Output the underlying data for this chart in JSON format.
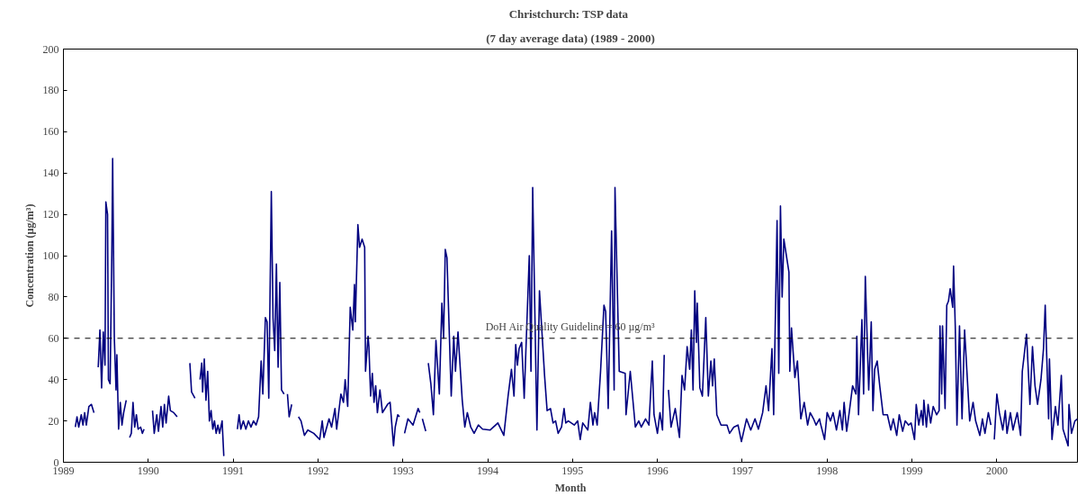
{
  "chart_data": {
    "type": "line",
    "title": "Christchurch:  TSP data",
    "subtitle": "(7 day average data) (1989 - 2000)",
    "xlabel": "Month",
    "ylabel": "Concentration (µg/m³)",
    "xlim": [
      1989,
      2000.95
    ],
    "xticks": [
      1989,
      1990,
      1991,
      1992,
      1993,
      1994,
      1995,
      1996,
      1997,
      1998,
      1999,
      2000
    ],
    "ylim": [
      0,
      200
    ],
    "yticks": [
      0,
      20,
      40,
      60,
      80,
      100,
      120,
      140,
      160,
      180,
      200
    ],
    "grid": false,
    "marker": "none",
    "line_style": "solid",
    "ref_lines": [
      {
        "axis": "y",
        "value": 60,
        "label": "DoH Air Quality Guideline = 60 µg/m³",
        "color": "#000000",
        "line_style": "dashed"
      }
    ],
    "series": [
      {
        "color": "#000080",
        "x": [
          1989.14,
          1989.16,
          1989.18,
          1989.21,
          1989.23,
          1989.25,
          1989.27,
          1989.3,
          1989.33,
          1989.36,
          1989.38,
          1989.41,
          1989.43,
          1989.45,
          1989.47,
          1989.49,
          1989.5,
          1989.52,
          1989.53,
          1989.55,
          1989.57,
          1989.58,
          1989.6,
          1989.62,
          1989.63,
          1989.65,
          1989.67,
          1989.69,
          1989.71,
          1989.74,
          1989.76,
          1989.78,
          1989.8,
          1989.82,
          1989.84,
          1989.86,
          1989.88,
          1989.91,
          1989.93,
          1989.95,
          1990.0,
          1990.05,
          1990.07,
          1990.1,
          1990.12,
          1990.15,
          1990.17,
          1990.19,
          1990.21,
          1990.24,
          1990.26,
          1990.3,
          1990.34,
          1990.42,
          1990.49,
          1990.51,
          1990.55,
          1990.58,
          1990.61,
          1990.63,
          1990.64,
          1990.66,
          1990.68,
          1990.7,
          1990.72,
          1990.74,
          1990.76,
          1990.78,
          1990.8,
          1990.82,
          1990.84,
          1990.87,
          1990.89,
          1990.97,
          1991.05,
          1991.07,
          1991.09,
          1991.12,
          1991.15,
          1991.18,
          1991.21,
          1991.24,
          1991.27,
          1991.3,
          1991.33,
          1991.35,
          1991.38,
          1991.4,
          1991.42,
          1991.45,
          1991.47,
          1991.49,
          1991.51,
          1991.53,
          1991.55,
          1991.57,
          1991.6,
          1991.62,
          1991.64,
          1991.66,
          1991.69,
          1991.73,
          1991.77,
          1991.8,
          1991.84,
          1991.88,
          1991.95,
          1992.02,
          1992.05,
          1992.07,
          1992.13,
          1992.16,
          1992.2,
          1992.22,
          1992.27,
          1992.3,
          1992.32,
          1992.35,
          1992.38,
          1992.41,
          1992.43,
          1992.44,
          1992.47,
          1992.49,
          1992.52,
          1992.55,
          1992.56,
          1992.59,
          1992.6,
          1992.62,
          1992.64,
          1992.66,
          1992.68,
          1992.7,
          1992.73,
          1992.76,
          1992.82,
          1992.85,
          1992.89,
          1992.91,
          1992.94,
          1992.96,
          1992.99,
          1993.02,
          1993.06,
          1993.12,
          1993.18,
          1993.2,
          1993.22,
          1993.23,
          1993.27,
          1993.29,
          1993.3,
          1993.33,
          1993.36,
          1993.39,
          1993.43,
          1993.46,
          1993.48,
          1993.5,
          1993.52,
          1993.57,
          1993.6,
          1993.62,
          1993.65,
          1993.7,
          1993.73,
          1993.76,
          1993.8,
          1993.84,
          1993.89,
          1993.94,
          1994.03,
          1994.12,
          1994.19,
          1994.24,
          1994.28,
          1994.31,
          1994.33,
          1994.35,
          1994.37,
          1994.4,
          1994.43,
          1994.49,
          1994.51,
          1994.53,
          1994.58,
          1994.61,
          1994.67,
          1994.7,
          1994.74,
          1994.77,
          1994.8,
          1994.83,
          1994.87,
          1994.9,
          1994.92,
          1994.95,
          1995.02,
          1995.06,
          1995.09,
          1995.12,
          1995.18,
          1995.21,
          1995.24,
          1995.26,
          1995.29,
          1995.33,
          1995.37,
          1995.39,
          1995.42,
          1995.46,
          1995.49,
          1995.5,
          1995.55,
          1995.62,
          1995.63,
          1995.68,
          1995.74,
          1995.78,
          1995.81,
          1995.86,
          1995.9,
          1995.94,
          1995.96,
          1996.0,
          1996.03,
          1996.06,
          1996.08,
          1996.1,
          1996.13,
          1996.16,
          1996.21,
          1996.26,
          1996.29,
          1996.32,
          1996.35,
          1996.38,
          1996.4,
          1996.42,
          1996.44,
          1996.46,
          1996.47,
          1996.5,
          1996.53,
          1996.57,
          1996.6,
          1996.63,
          1996.65,
          1996.67,
          1996.7,
          1996.75,
          1996.82,
          1996.85,
          1996.9,
          1996.95,
          1996.99,
          1997.05,
          1997.1,
          1997.15,
          1997.19,
          1997.24,
          1997.28,
          1997.31,
          1997.35,
          1997.37,
          1997.41,
          1997.43,
          1997.45,
          1997.47,
          1997.49,
          1997.55,
          1997.56,
          1997.58,
          1997.62,
          1997.65,
          1997.69,
          1997.73,
          1997.77,
          1997.8,
          1997.84,
          1997.87,
          1997.91,
          1997.92,
          1997.97,
          1998.0,
          1998.04,
          1998.07,
          1998.11,
          1998.15,
          1998.18,
          1998.2,
          1998.23,
          1998.26,
          1998.3,
          1998.34,
          1998.35,
          1998.37,
          1998.41,
          1998.43,
          1998.45,
          1998.49,
          1998.52,
          1998.54,
          1998.56,
          1998.59,
          1998.62,
          1998.66,
          1998.71,
          1998.75,
          1998.78,
          1998.82,
          1998.85,
          1998.89,
          1998.92,
          1998.96,
          1998.99,
          1999.03,
          1999.05,
          1999.08,
          1999.11,
          1999.13,
          1999.14,
          1999.17,
          1999.19,
          1999.22,
          1999.25,
          1999.29,
          1999.32,
          1999.33,
          1999.35,
          1999.36,
          1999.39,
          1999.41,
          1999.43,
          1999.45,
          1999.48,
          1999.49,
          1999.51,
          1999.53,
          1999.56,
          1999.59,
          1999.62,
          1999.65,
          1999.68,
          1999.72,
          1999.75,
          1999.8,
          1999.83,
          1999.86,
          1999.9,
          1999.93,
          1999.95,
          1999.97,
          2000.0,
          2000.03,
          2000.07,
          2000.1,
          2000.12,
          2000.16,
          2000.19,
          2000.24,
          2000.28,
          2000.3,
          2000.32,
          2000.35,
          2000.39,
          2000.42,
          2000.45,
          2000.48,
          2000.52,
          2000.55,
          2000.57,
          2000.61,
          2000.62,
          2000.65,
          2000.69,
          2000.72,
          2000.76,
          2000.78,
          2000.84,
          2000.85,
          2000.88,
          2000.92,
          2000.95
        ],
        "values": [
          17,
          22,
          17,
          23,
          18,
          24,
          18,
          27,
          28,
          24,
          null,
          46,
          64,
          36,
          63,
          47,
          126,
          120,
          40,
          38,
          100,
          147,
          60,
          35,
          52,
          16,
          29,
          18,
          24,
          30,
          null,
          12,
          14,
          29,
          17,
          23,
          16,
          17,
          14,
          16,
          null,
          25,
          14,
          23,
          15,
          27,
          17,
          28,
          19,
          32,
          25,
          24,
          22,
          null,
          48,
          34,
          31,
          null,
          40,
          48,
          34,
          50,
          30,
          44,
          20,
          25,
          16,
          20,
          14,
          18,
          14,
          20,
          3,
          null,
          16,
          23,
          16,
          20,
          16,
          20,
          17,
          20,
          18,
          22,
          49,
          33,
          70,
          68,
          31,
          131,
          70,
          54,
          96,
          46,
          87,
          35,
          33,
          null,
          33,
          22,
          28,
          null,
          22,
          20,
          13,
          15.6,
          14,
          11,
          20,
          12,
          21,
          17,
          26,
          16,
          33,
          29,
          40,
          27,
          75,
          64,
          86,
          68,
          115,
          104,
          108,
          104,
          44,
          61,
          56,
          32,
          43,
          29,
          37,
          24,
          35,
          24,
          28,
          29,
          8,
          17,
          23,
          22,
          null,
          14,
          21,
          18,
          26,
          24,
          null,
          21,
          15,
          null,
          48,
          38,
          23,
          59,
          33,
          77,
          60,
          103,
          99,
          32,
          61,
          44,
          63,
          30,
          17,
          24,
          17,
          14,
          18,
          16,
          15.6,
          19,
          13,
          32,
          45,
          32,
          57,
          47,
          55,
          58,
          31,
          100,
          44,
          133,
          15.6,
          83,
          42,
          25,
          26,
          19,
          20,
          14,
          17,
          26,
          19,
          20,
          18,
          20,
          11,
          19,
          15.6,
          29,
          18,
          24,
          18,
          44,
          76,
          73,
          26,
          112,
          35,
          133,
          44,
          43,
          23,
          44,
          17,
          20,
          17,
          21,
          18,
          49,
          23,
          14,
          24,
          15.6,
          52,
          null,
          35,
          17,
          26,
          12,
          42,
          35,
          56,
          45,
          64,
          35,
          83,
          58,
          77,
          36,
          32,
          70,
          32,
          49,
          37,
          50,
          23,
          18,
          18,
          14,
          17,
          18,
          10,
          21,
          15.6,
          21,
          16,
          24,
          37,
          25,
          55,
          23,
          117,
          43,
          124,
          80,
          108,
          92,
          44,
          65,
          41,
          49,
          21,
          29,
          18,
          24,
          21,
          18,
          21,
          19,
          11,
          24,
          20,
          24,
          15.6,
          25,
          15.6,
          29,
          15,
          24,
          37,
          33,
          61,
          23,
          69,
          33,
          90,
          35,
          68,
          25,
          45,
          49,
          37,
          23,
          23,
          15.6,
          21,
          13,
          23,
          15,
          20,
          18,
          19,
          11,
          28,
          18,
          25,
          18,
          30,
          17,
          28,
          19,
          27,
          23,
          25,
          66,
          33,
          66,
          26,
          76,
          78,
          84,
          75,
          95,
          66,
          18,
          66,
          21,
          64,
          42,
          20,
          29,
          20,
          13,
          21,
          14,
          24,
          18,
          null,
          11,
          33,
          24,
          15.6,
          25,
          14,
          24,
          15.6,
          24,
          13,
          44,
          51,
          62,
          28,
          56,
          37,
          28,
          40,
          55,
          76,
          21,
          50,
          11,
          27,
          18,
          42,
          16,
          8,
          28,
          14,
          20,
          21
        ]
      }
    ]
  }
}
